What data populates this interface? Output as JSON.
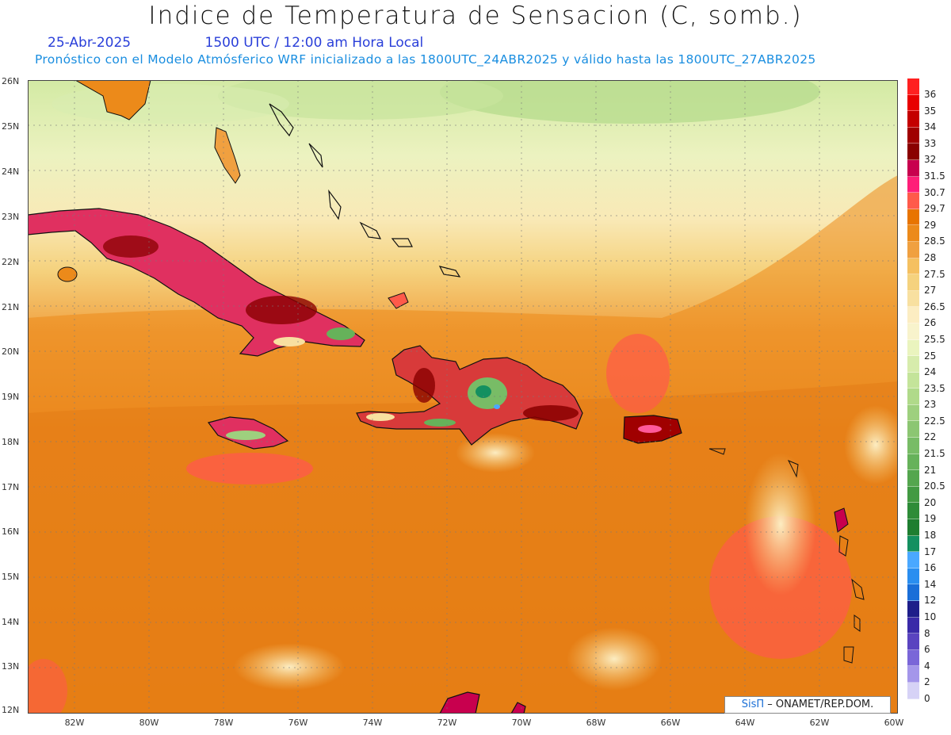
{
  "header": {
    "title": "Indice de Temperatura de Sensacion (C, somb.)",
    "date": "25-Abr-2025",
    "time": "1500 UTC / 12:00 am Hora Local",
    "forecast_note": "Pronóstico con el Modelo Atmósferico WRF inicializado a las 1800UTC_24ABR2025 y válido hasta las  1800UTC_27ABR2025"
  },
  "axes": {
    "lat_labels": [
      "26N",
      "25N",
      "24N",
      "23N",
      "22N",
      "21N",
      "20N",
      "19N",
      "18N",
      "17N",
      "16N",
      "15N",
      "14N",
      "13N",
      "12N"
    ],
    "lon_labels": [
      "82W",
      "80W",
      "78W",
      "76W",
      "74W",
      "72W",
      "70W",
      "68W",
      "66W",
      "64W",
      "62W",
      "60W"
    ]
  },
  "legend": {
    "labels": [
      "36",
      "35",
      "34",
      "33",
      "32",
      "31.5",
      "30.7",
      "29.7",
      "29",
      "28.5",
      "28",
      "27.5",
      "27",
      "26.5",
      "26",
      "25.5",
      "25",
      "24",
      "23.5",
      "23",
      "22.5",
      "22",
      "21.5",
      "21",
      "20.5",
      "20",
      "19",
      "18",
      "17",
      "16",
      "14",
      "12",
      "10",
      "8",
      "6",
      "4",
      "2",
      "0"
    ],
    "colors": [
      "#ff2020",
      "#e80000",
      "#c40000",
      "#a00000",
      "#8a0000",
      "#c8004e",
      "#ff1e78",
      "#ff5a4a",
      "#e87400",
      "#ec8a1a",
      "#f0a040",
      "#f5c060",
      "#f5d27e",
      "#f8e0a0",
      "#fcedc2",
      "#f8f3cc",
      "#eaf4be",
      "#d7ecac",
      "#c4e49a",
      "#b0da8a",
      "#9ed07e",
      "#8cc672",
      "#78bc66",
      "#66b25a",
      "#54a64e",
      "#429a42",
      "#2e8c38",
      "#1e7e30",
      "#149060",
      "#4aa8ff",
      "#2a8ef0",
      "#1a6ed8",
      "#1e1e8a",
      "#3a2aa8",
      "#5a44c0",
      "#7a66d8",
      "#a496ea",
      "#d6d2f6"
    ]
  },
  "credit": {
    "brand": "SisΠ",
    "text": "– ONAMET/REP.DOM."
  }
}
